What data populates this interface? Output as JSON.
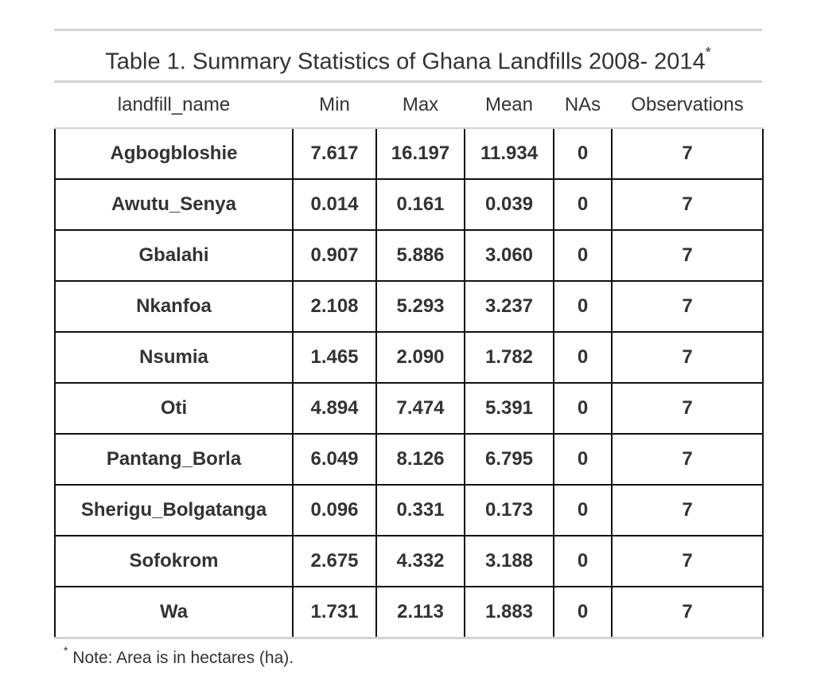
{
  "table": {
    "caption": "Table 1. Summary Statistics of Ghana Landfills 2008- 2014",
    "caption_mark": "*",
    "columns": [
      "landfill_name",
      "Min",
      "Max",
      "Mean",
      "NAs",
      "Observations"
    ],
    "rows": [
      [
        "Agbogbloshie",
        "7.617",
        "16.197",
        "11.934",
        "0",
        "7"
      ],
      [
        "Awutu_Senya",
        "0.014",
        "0.161",
        "0.039",
        "0",
        "7"
      ],
      [
        "Gbalahi",
        "0.907",
        "5.886",
        "3.060",
        "0",
        "7"
      ],
      [
        "Nkanfoa",
        "2.108",
        "5.293",
        "3.237",
        "0",
        "7"
      ],
      [
        "Nsumia",
        "1.465",
        "2.090",
        "1.782",
        "0",
        "7"
      ],
      [
        "Oti",
        "4.894",
        "7.474",
        "5.391",
        "0",
        "7"
      ],
      [
        "Pantang_Borla",
        "6.049",
        "8.126",
        "6.795",
        "0",
        "7"
      ],
      [
        "Sherigu_Bolgatanga",
        "0.096",
        "0.331",
        "0.173",
        "0",
        "7"
      ],
      [
        "Sofokrom",
        "2.675",
        "4.332",
        "3.188",
        "0",
        "7"
      ],
      [
        "Wa",
        "1.731",
        "2.113",
        "1.883",
        "0",
        "7"
      ]
    ]
  },
  "footnote": {
    "mark": "*",
    "text": " Note: Area is in hectares (ha)."
  },
  "colors": {
    "text": "#333333",
    "grid": "#111111",
    "rule": "#d3d3d3"
  }
}
